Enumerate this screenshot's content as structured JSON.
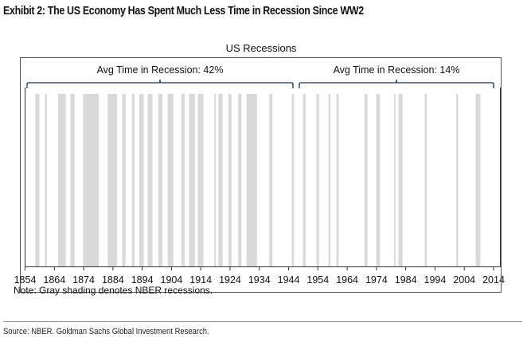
{
  "exhibit": {
    "title": "Exhibit 2: The US Economy Has Spent Much Less Time in Recession Since WW2",
    "source": "Source: NBER. Goldman Sachs Global Investment Research."
  },
  "chart_data": {
    "type": "bar",
    "subtype": "shaded-periods",
    "title": "US Recessions",
    "xlabel": "",
    "ylabel": "",
    "xlim": [
      1854,
      2014
    ],
    "xticks": [
      1854,
      1864,
      1874,
      1884,
      1894,
      1904,
      1914,
      1924,
      1934,
      1944,
      1954,
      1964,
      1974,
      1984,
      1994,
      2004,
      2014
    ],
    "grid": false,
    "note": "Note: Gray shading denotes NBER recessions.",
    "shade_color": "#d9d9d9",
    "bracket_color": "#1f2a4a",
    "annotations": [
      {
        "label": "Avg Time in Recession: 42%",
        "from": 1854,
        "to": 1945,
        "value_pct": 42
      },
      {
        "label": "Avg Time in Recession: 14%",
        "from": 1946.5,
        "to": 2014,
        "value_pct": 14
      }
    ],
    "recessions": [
      {
        "start": 1857.5,
        "end": 1858.9
      },
      {
        "start": 1860.8,
        "end": 1861.5
      },
      {
        "start": 1865.3,
        "end": 1867.9
      },
      {
        "start": 1869.5,
        "end": 1870.9
      },
      {
        "start": 1873.8,
        "end": 1879.2
      },
      {
        "start": 1882.2,
        "end": 1885.4
      },
      {
        "start": 1887.2,
        "end": 1888.3
      },
      {
        "start": 1890.5,
        "end": 1891.4
      },
      {
        "start": 1893.0,
        "end": 1894.5
      },
      {
        "start": 1895.9,
        "end": 1897.5
      },
      {
        "start": 1899.5,
        "end": 1900.9
      },
      {
        "start": 1902.7,
        "end": 1904.6
      },
      {
        "start": 1907.4,
        "end": 1908.5
      },
      {
        "start": 1910.0,
        "end": 1912.0
      },
      {
        "start": 1913.0,
        "end": 1914.9
      },
      {
        "start": 1918.6,
        "end": 1919.2
      },
      {
        "start": 1920.0,
        "end": 1921.5
      },
      {
        "start": 1923.4,
        "end": 1924.5
      },
      {
        "start": 1926.8,
        "end": 1927.9
      },
      {
        "start": 1929.6,
        "end": 1933.2
      },
      {
        "start": 1937.4,
        "end": 1938.5
      },
      {
        "start": 1945.1,
        "end": 1945.8
      },
      {
        "start": 1948.9,
        "end": 1949.8
      },
      {
        "start": 1953.5,
        "end": 1954.4
      },
      {
        "start": 1957.6,
        "end": 1958.3
      },
      {
        "start": 1960.3,
        "end": 1961.1
      },
      {
        "start": 1969.9,
        "end": 1970.9
      },
      {
        "start": 1973.9,
        "end": 1975.2
      },
      {
        "start": 1980.0,
        "end": 1980.5
      },
      {
        "start": 1981.5,
        "end": 1982.9
      },
      {
        "start": 1990.5,
        "end": 1991.2
      },
      {
        "start": 2001.2,
        "end": 2001.9
      },
      {
        "start": 2007.9,
        "end": 2009.5
      }
    ]
  }
}
